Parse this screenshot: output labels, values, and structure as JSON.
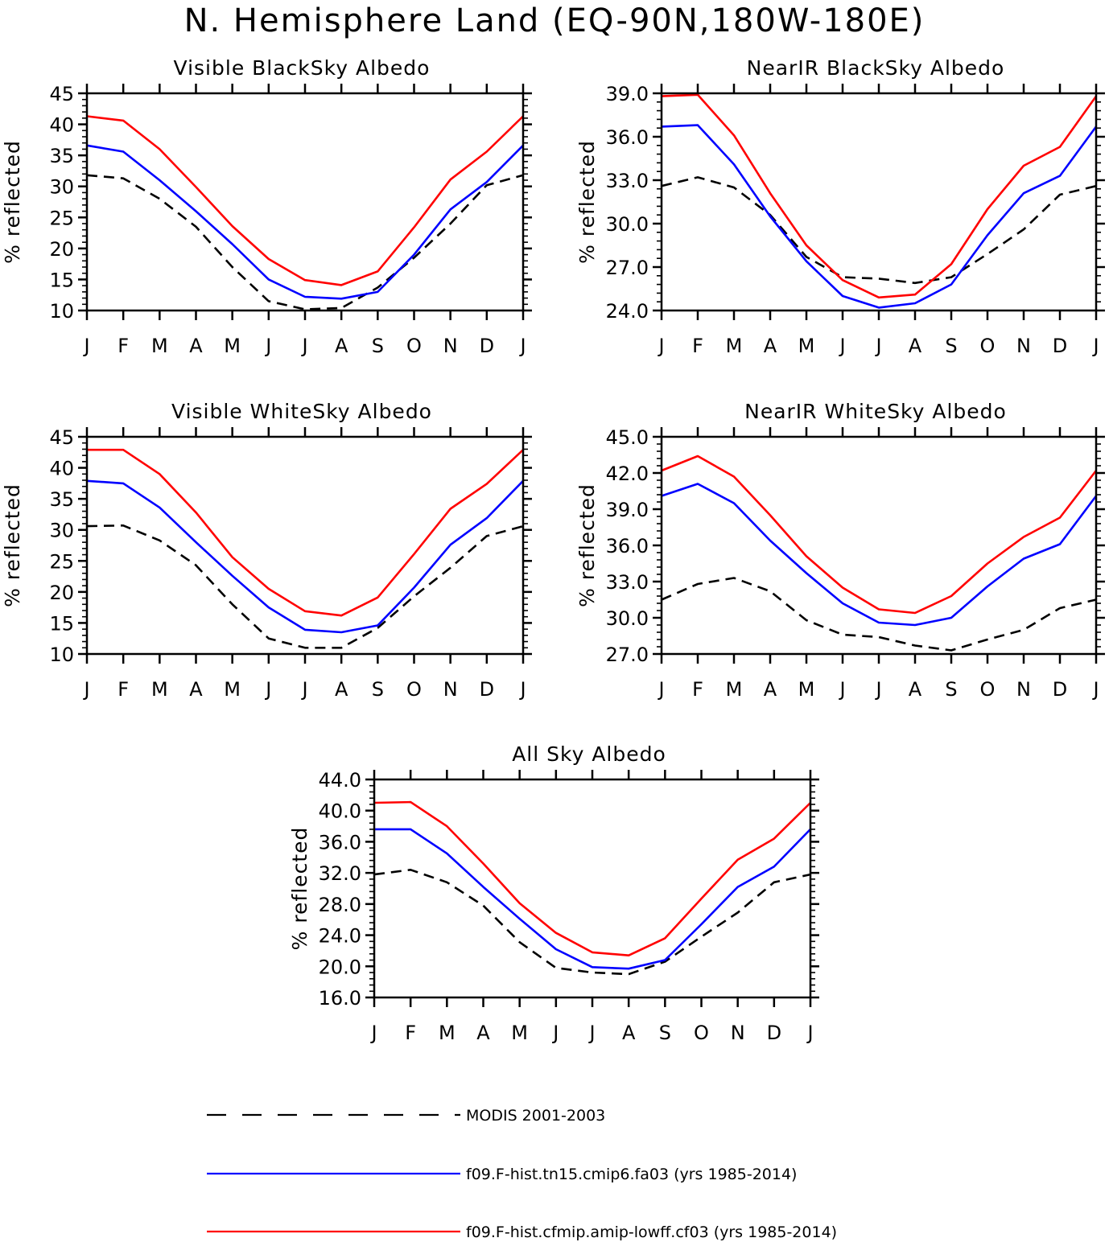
{
  "figure_title": "N. Hemisphere Land (EQ-90N,180W-180E)",
  "legend": [
    {
      "label": "MODIS 2001-2003",
      "color": "#000000",
      "dash": true
    },
    {
      "label": "f09.F-hist.tn15.cmip6.fa03 (yrs 1985-2014)",
      "color": "#0000ff",
      "dash": false
    },
    {
      "label": "f09.F-hist.cfmip.amip-lowff.cf03 (yrs 1985-2014)",
      "color": "#ff0000",
      "dash": false
    }
  ],
  "chart_data": [
    {
      "type": "line",
      "title": "Visible BlackSky Albedo",
      "xlabel": "",
      "ylabel": "% reflected",
      "categories": [
        "J",
        "F",
        "M",
        "A",
        "M",
        "J",
        "J",
        "A",
        "S",
        "O",
        "N",
        "D",
        "J"
      ],
      "ylim": [
        10,
        45
      ],
      "yticks": [
        10,
        15,
        20,
        25,
        30,
        35,
        40,
        45
      ],
      "ytick_labels": [
        "10",
        "15",
        "20",
        "25",
        "30",
        "35",
        "40",
        "45"
      ],
      "grid": false,
      "series": [
        {
          "name": "MODIS 2001-2003",
          "color": "#000000",
          "dash": true,
          "values": [
            31.8,
            31.3,
            28.0,
            23.5,
            17.0,
            11.5,
            10.2,
            10.4,
            13.7,
            18.5,
            24.0,
            30.2,
            31.8
          ]
        },
        {
          "name": "f09.F-hist.tn15.cmip6.fa03 (yrs 1985-2014)",
          "color": "#0000ff",
          "dash": false,
          "values": [
            36.6,
            35.6,
            31.0,
            26.0,
            20.7,
            15.0,
            12.2,
            11.9,
            13.0,
            19.0,
            26.3,
            30.7,
            36.6
          ]
        },
        {
          "name": "f09.F-hist.cfmip.amip-lowff.cf03 (yrs 1985-2014)",
          "color": "#ff0000",
          "dash": false,
          "values": [
            41.3,
            40.6,
            36.0,
            29.9,
            23.6,
            18.3,
            14.9,
            14.1,
            16.3,
            23.4,
            31.1,
            35.6,
            41.3
          ]
        }
      ]
    },
    {
      "type": "line",
      "title": "NearIR BlackSky Albedo",
      "xlabel": "",
      "ylabel": "% reflected",
      "categories": [
        "J",
        "F",
        "M",
        "A",
        "M",
        "J",
        "J",
        "A",
        "S",
        "O",
        "N",
        "D",
        "J"
      ],
      "ylim": [
        24,
        39
      ],
      "yticks": [
        24,
        27,
        30,
        33,
        36,
        39
      ],
      "ytick_labels": [
        "24.0",
        "27.0",
        "30.0",
        "33.0",
        "36.0",
        "39.0"
      ],
      "grid": false,
      "series": [
        {
          "name": "MODIS 2001-2003",
          "color": "#000000",
          "dash": true,
          "values": [
            32.6,
            33.2,
            32.5,
            30.6,
            27.7,
            26.3,
            26.2,
            25.9,
            26.3,
            27.9,
            29.6,
            32.0,
            32.6
          ]
        },
        {
          "name": "f09.F-hist.tn15.cmip6.fa03 (yrs 1985-2014)",
          "color": "#0000ff",
          "dash": false,
          "values": [
            36.7,
            36.8,
            34.1,
            30.5,
            27.4,
            25.0,
            24.2,
            24.5,
            25.8,
            29.2,
            32.1,
            33.3,
            36.7
          ]
        },
        {
          "name": "f09.F-hist.cfmip.amip-lowff.cf03 (yrs 1985-2014)",
          "color": "#ff0000",
          "dash": false,
          "values": [
            38.8,
            38.9,
            36.1,
            32.1,
            28.5,
            26.1,
            24.9,
            25.1,
            27.2,
            31.0,
            34.0,
            35.3,
            38.8
          ]
        }
      ]
    },
    {
      "type": "line",
      "title": "Visible WhiteSky Albedo",
      "xlabel": "",
      "ylabel": "% reflected",
      "categories": [
        "J",
        "F",
        "M",
        "A",
        "M",
        "J",
        "J",
        "A",
        "S",
        "O",
        "N",
        "D",
        "J"
      ],
      "ylim": [
        10,
        45
      ],
      "yticks": [
        10,
        15,
        20,
        25,
        30,
        35,
        40,
        45
      ],
      "ytick_labels": [
        "10",
        "15",
        "20",
        "25",
        "30",
        "35",
        "40",
        "45"
      ],
      "grid": false,
      "series": [
        {
          "name": "MODIS 2001-2003",
          "color": "#000000",
          "dash": true,
          "values": [
            30.6,
            30.7,
            28.3,
            24.3,
            18.0,
            12.5,
            11.0,
            11.0,
            14.2,
            19.3,
            23.9,
            29.0,
            30.6
          ]
        },
        {
          "name": "f09.F-hist.tn15.cmip6.fa03 (yrs 1985-2014)",
          "color": "#0000ff",
          "dash": false,
          "values": [
            37.9,
            37.5,
            33.6,
            28.0,
            22.6,
            17.5,
            13.9,
            13.5,
            14.6,
            20.7,
            27.6,
            31.9,
            37.9
          ]
        },
        {
          "name": "f09.F-hist.cfmip.amip-lowff.cf03 (yrs 1985-2014)",
          "color": "#ff0000",
          "dash": false,
          "values": [
            42.9,
            42.9,
            39.0,
            32.8,
            25.6,
            20.5,
            16.9,
            16.2,
            19.1,
            26.1,
            33.4,
            37.4,
            42.9
          ]
        }
      ]
    },
    {
      "type": "line",
      "title": "NearIR WhiteSky Albedo",
      "xlabel": "",
      "ylabel": "% reflected",
      "categories": [
        "J",
        "F",
        "M",
        "A",
        "M",
        "J",
        "J",
        "A",
        "S",
        "O",
        "N",
        "D",
        "J"
      ],
      "ylim": [
        27,
        45
      ],
      "yticks": [
        27,
        30,
        33,
        36,
        39,
        42,
        45
      ],
      "ytick_labels": [
        "27.0",
        "30.0",
        "33.0",
        "36.0",
        "39.0",
        "42.0",
        "45.0"
      ],
      "grid": false,
      "series": [
        {
          "name": "MODIS 2001-2003",
          "color": "#000000",
          "dash": true,
          "values": [
            31.5,
            32.8,
            33.3,
            32.2,
            29.8,
            28.6,
            28.4,
            27.7,
            27.3,
            28.2,
            29.0,
            30.8,
            31.5
          ]
        },
        {
          "name": "f09.F-hist.tn15.cmip6.fa03 (yrs 1985-2014)",
          "color": "#0000ff",
          "dash": false,
          "values": [
            40.1,
            41.1,
            39.5,
            36.4,
            33.7,
            31.2,
            29.6,
            29.4,
            30.0,
            32.6,
            34.9,
            36.1,
            40.1
          ]
        },
        {
          "name": "f09.F-hist.cfmip.amip-lowff.cf03 (yrs 1985-2014)",
          "color": "#ff0000",
          "dash": false,
          "values": [
            42.2,
            43.4,
            41.7,
            38.5,
            35.1,
            32.5,
            30.7,
            30.4,
            31.8,
            34.5,
            36.7,
            38.3,
            42.2
          ]
        }
      ]
    },
    {
      "type": "line",
      "title": "All Sky Albedo",
      "xlabel": "",
      "ylabel": "% reflected",
      "categories": [
        "J",
        "F",
        "M",
        "A",
        "M",
        "J",
        "J",
        "A",
        "S",
        "O",
        "N",
        "D",
        "J"
      ],
      "ylim": [
        16,
        44
      ],
      "yticks": [
        16,
        20,
        24,
        28,
        32,
        36,
        40,
        44
      ],
      "ytick_labels": [
        "16.0",
        "20.0",
        "24.0",
        "28.0",
        "32.0",
        "36.0",
        "40.0",
        "44.0"
      ],
      "grid": false,
      "series": [
        {
          "name": "MODIS 2001-2003",
          "color": "#000000",
          "dash": true,
          "values": [
            31.8,
            32.4,
            30.8,
            27.8,
            23.1,
            19.8,
            19.2,
            19.0,
            20.6,
            23.8,
            26.9,
            30.8,
            31.8
          ]
        },
        {
          "name": "f09.F-hist.tn15.cmip6.fa03 (yrs 1985-2014)",
          "color": "#0000ff",
          "dash": false,
          "values": [
            37.6,
            37.6,
            34.5,
            30.2,
            26.1,
            22.2,
            19.9,
            19.7,
            20.8,
            25.4,
            30.2,
            32.8,
            37.6
          ]
        },
        {
          "name": "f09.F-hist.cfmip.amip-lowff.cf03 (yrs 1985-2014)",
          "color": "#ff0000",
          "dash": false,
          "values": [
            41.0,
            41.1,
            38.0,
            33.2,
            28.1,
            24.3,
            21.8,
            21.4,
            23.6,
            28.7,
            33.7,
            36.4,
            41.0
          ]
        }
      ]
    }
  ]
}
